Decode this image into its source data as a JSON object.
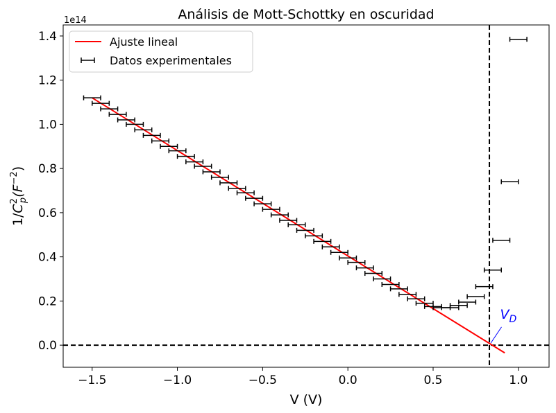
{
  "chart_data": {
    "type": "scatter",
    "title": "Análisis de Mott-Schottky en oscuridad",
    "xlabel": "V (V)",
    "ylabel_parts": {
      "prefix": "1/",
      "c": "C",
      "sup": "2",
      "sub": "p",
      "open": "(F",
      "unit_sup": "−2",
      "close": ")"
    },
    "y_offset_label": "1e14",
    "xlim": [
      -1.67,
      1.18
    ],
    "ylim": [
      -0.1,
      1.45
    ],
    "xticks": [
      -1.5,
      -1.0,
      -0.5,
      0.0,
      0.5,
      1.0
    ],
    "xtick_labels": [
      "−1.5",
      "−1.0",
      "−0.5",
      "0.0",
      "0.5",
      "1.0"
    ],
    "yticks": [
      0.0,
      0.2,
      0.4,
      0.6,
      0.8,
      1.0,
      1.2,
      1.4
    ],
    "ytick_labels": [
      "0.0",
      "0.2",
      "0.4",
      "0.6",
      "0.8",
      "1.0",
      "1.2",
      "1.4"
    ],
    "legend": {
      "placement": "upper-left",
      "entries": [
        "Ajuste lineal",
        "Datos experimentales"
      ]
    },
    "series": [
      {
        "name": "Datos experimentales",
        "kind": "errorbar",
        "color": "#000000",
        "xerr": 0.05,
        "x": [
          -1.5,
          -1.45,
          -1.4,
          -1.35,
          -1.3,
          -1.25,
          -1.2,
          -1.15,
          -1.1,
          -1.05,
          -1.0,
          -0.95,
          -0.9,
          -0.85,
          -0.8,
          -0.75,
          -0.7,
          -0.65,
          -0.6,
          -0.55,
          -0.5,
          -0.45,
          -0.4,
          -0.35,
          -0.3,
          -0.25,
          -0.2,
          -0.15,
          -0.1,
          -0.05,
          0.0,
          0.05,
          0.1,
          0.15,
          0.2,
          0.25,
          0.3,
          0.35,
          0.4,
          0.45,
          0.5,
          0.55,
          0.6,
          0.65,
          0.7,
          0.75,
          0.8,
          0.85,
          0.9,
          0.95,
          1.0
        ],
        "y": [
          1.12,
          1.095,
          1.07,
          1.045,
          1.02,
          1.0,
          0.975,
          0.95,
          0.925,
          0.9,
          0.88,
          0.855,
          0.83,
          0.81,
          0.785,
          0.76,
          0.735,
          0.71,
          0.69,
          0.665,
          0.64,
          0.615,
          0.59,
          0.565,
          0.545,
          0.52,
          0.495,
          0.47,
          0.445,
          0.42,
          0.395,
          0.375,
          0.35,
          0.325,
          0.3,
          0.275,
          0.255,
          0.23,
          0.21,
          0.19,
          0.175,
          0.17,
          0.17,
          0.18,
          0.195,
          0.22,
          0.265,
          0.34,
          0.475,
          0.74,
          1.385
        ]
      },
      {
        "name": "Ajuste lineal",
        "kind": "line",
        "color": "#ff0000",
        "x": [
          -1.5,
          0.92
        ],
        "y": [
          1.12,
          -0.035
        ]
      }
    ],
    "reference_lines": [
      {
        "orientation": "horizontal",
        "value": 0.0,
        "style": "dashed",
        "color": "#000000"
      },
      {
        "orientation": "vertical",
        "value": 0.83,
        "style": "dashed",
        "color": "#000000"
      }
    ],
    "annotation": {
      "text": "V",
      "sub": "D",
      "color": "#0000ff",
      "point": [
        0.83,
        0.0
      ],
      "text_at": [
        0.95,
        0.12
      ]
    }
  }
}
